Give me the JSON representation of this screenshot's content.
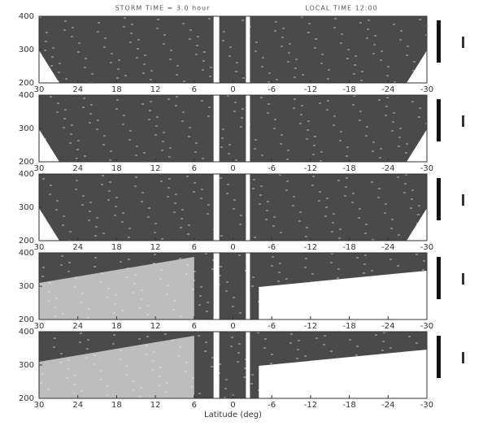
{
  "chart_data": [
    {
      "type": "image",
      "title": "STORM TIME = 3.0 hour",
      "subtitle": "LOCAL TIME 12:00",
      "xlim": [
        30,
        -30
      ],
      "xticks": [
        30,
        24,
        18,
        12,
        6,
        0,
        -6,
        -12,
        -18,
        -24,
        -30
      ],
      "ylim": [
        200,
        400
      ],
      "yticks": [
        200,
        300,
        400
      ]
    },
    {
      "type": "image",
      "xlim": [
        30,
        -30
      ],
      "xticks": [
        30,
        24,
        18,
        12,
        6,
        0,
        -6,
        -12,
        -18,
        -24,
        -30
      ],
      "ylim": [
        200,
        400
      ],
      "yticks": [
        200,
        300,
        400
      ]
    },
    {
      "type": "image",
      "xlim": [
        30,
        -30
      ],
      "xticks": [
        30,
        24,
        18,
        12,
        6,
        0,
        -6,
        -12,
        -18,
        -24,
        -30
      ],
      "ylim": [
        200,
        400
      ],
      "yticks": [
        200,
        300,
        400
      ]
    },
    {
      "type": "image",
      "xlim": [
        30,
        -30
      ],
      "xticks": [
        30,
        24,
        18,
        12,
        6,
        0,
        -6,
        -12,
        -18,
        -24,
        -30
      ],
      "ylim": [
        200,
        400
      ],
      "yticks": [
        200,
        300,
        400
      ]
    },
    {
      "type": "image",
      "xlabel": "Latitude (deg)",
      "xlim": [
        30,
        -30
      ],
      "xticks": [
        30,
        24,
        18,
        12,
        6,
        0,
        -6,
        -12,
        -18,
        -24,
        -30
      ],
      "ylim": [
        200,
        400
      ],
      "yticks": [
        200,
        300,
        400
      ]
    }
  ]
}
